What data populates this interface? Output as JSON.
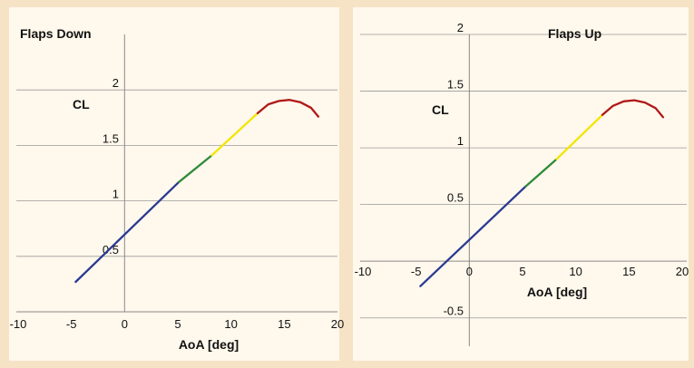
{
  "background_color": "#f6e3c5",
  "panel_color": "#fff8ec",
  "segment_colors": {
    "blue": "#2a3a93",
    "green": "#2e8b3a",
    "yellow": "#f2e600",
    "red": "#b01818"
  },
  "chart_data": [
    {
      "type": "line",
      "title": "Flaps Down",
      "xlabel": "AoA [deg]",
      "ylabel": "CL",
      "xlim": [
        -10,
        20
      ],
      "ylim": [
        0,
        2.5
      ],
      "xticks": [
        "-10",
        "-5",
        "0",
        "5",
        "10",
        "15",
        "20"
      ],
      "yticks": [
        "0.5",
        "1",
        "1.5",
        "2"
      ],
      "grid": "horizontal",
      "series": [
        {
          "color": "#2a3a93",
          "x": [
            -4.6,
            5.1
          ],
          "y": [
            0.27,
            1.17
          ]
        },
        {
          "color": "#2e8b3a",
          "x": [
            5.1,
            8.2
          ],
          "y": [
            1.17,
            1.41
          ]
        },
        {
          "color": "#f2e600",
          "x": [
            8.2,
            12.5
          ],
          "y": [
            1.41,
            1.79
          ]
        },
        {
          "color": "#b01818",
          "x": [
            12.5,
            13.5,
            14.5,
            15.5,
            16.5,
            17.5,
            18.2
          ],
          "y": [
            1.79,
            1.87,
            1.9,
            1.91,
            1.89,
            1.84,
            1.76
          ]
        }
      ]
    },
    {
      "type": "line",
      "title": "Flaps Up",
      "xlabel": "AoA [deg]",
      "ylabel": "CL",
      "xlim": [
        -10,
        20
      ],
      "ylim": [
        -0.75,
        2
      ],
      "xticks": [
        "-10",
        "-5",
        "0",
        "5",
        "10",
        "15",
        "20"
      ],
      "yticks": [
        "-0.5",
        "0.5",
        "1",
        "1.5",
        "2"
      ],
      "grid": "horizontal",
      "series": [
        {
          "color": "#2a3a93",
          "x": [
            -4.6,
            5.3
          ],
          "y": [
            -0.22,
            0.66
          ]
        },
        {
          "color": "#2e8b3a",
          "x": [
            5.3,
            8.2
          ],
          "y": [
            0.66,
            0.9
          ]
        },
        {
          "color": "#f2e600",
          "x": [
            8.2,
            12.5
          ],
          "y": [
            0.9,
            1.29
          ]
        },
        {
          "color": "#b01818",
          "x": [
            12.5,
            13.5,
            14.5,
            15.5,
            16.5,
            17.5,
            18.2
          ],
          "y": [
            1.29,
            1.37,
            1.41,
            1.42,
            1.4,
            1.35,
            1.27
          ]
        }
      ]
    }
  ]
}
